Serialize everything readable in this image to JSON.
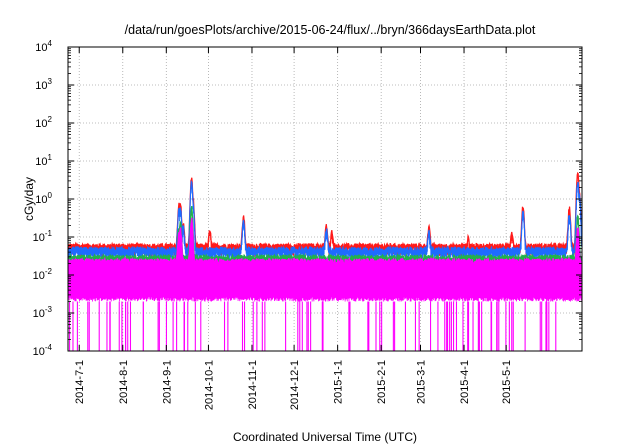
{
  "chart_data": {
    "type": "line",
    "title": "/data/run/goesPlots/archive/2015-06-24/flux/../bryn/366daysEarthData.plot",
    "xlabel": "Coordinated Universal Time (UTC)",
    "ylabel": "cGy/day",
    "yscale": "log",
    "ylim": [
      0.0001,
      10000
    ],
    "xlim": [
      "2014-06-23",
      "2015-06-24"
    ],
    "y_ticks": [
      {
        "value": 0.0001,
        "base": "10",
        "exp": "-4"
      },
      {
        "value": 0.001,
        "base": "10",
        "exp": "-3"
      },
      {
        "value": 0.01,
        "base": "10",
        "exp": "-2"
      },
      {
        "value": 0.1,
        "base": "10",
        "exp": "-1"
      },
      {
        "value": 1,
        "base": "10",
        "exp": "0"
      },
      {
        "value": 10,
        "base": "10",
        "exp": "1"
      },
      {
        "value": 100,
        "base": "10",
        "exp": "2"
      },
      {
        "value": 1000,
        "base": "10",
        "exp": "3"
      },
      {
        "value": 10000,
        "base": "10",
        "exp": "4"
      }
    ],
    "x_ticks": [
      "2014-7-1",
      "2014-8-1",
      "2014-9-1",
      "2014-10-1",
      "2014-11-1",
      "2014-12-1",
      "2015-1-1",
      "2015-2-1",
      "2015-3-1",
      "2015-4-1",
      "2015-5-1"
    ],
    "grid": true,
    "legend": "none",
    "series": [
      {
        "color": "#ff1a1a",
        "baseline": 0.05,
        "points": [
          [
            "2014-09-10",
            0.6
          ],
          [
            "2014-09-11",
            0.65
          ],
          [
            "2014-09-13",
            0.2
          ],
          [
            "2014-09-19",
            3.0
          ],
          [
            "2014-09-20",
            0.9
          ],
          [
            "2014-10-02",
            0.12
          ],
          [
            "2014-10-26",
            0.3
          ],
          [
            "2014-12-24",
            0.17
          ],
          [
            "2014-12-28",
            0.12
          ],
          [
            "2015-03-07",
            0.15
          ],
          [
            "2015-04-04",
            0.08
          ],
          [
            "2015-05-05",
            0.12
          ],
          [
            "2015-05-13",
            0.55
          ],
          [
            "2015-06-15",
            0.5
          ],
          [
            "2015-06-21",
            4.5
          ],
          [
            "2015-06-22",
            1.5
          ]
        ]
      },
      {
        "color": "#1e6bff",
        "baseline": 0.04,
        "points": [
          [
            "2014-09-10",
            0.45
          ],
          [
            "2014-09-11",
            0.5
          ],
          [
            "2014-09-13",
            0.15
          ],
          [
            "2014-09-19",
            2.2
          ],
          [
            "2014-09-20",
            0.6
          ],
          [
            "2014-10-26",
            0.22
          ],
          [
            "2014-12-24",
            0.13
          ],
          [
            "2015-03-07",
            0.12
          ],
          [
            "2015-05-13",
            0.4
          ],
          [
            "2015-06-15",
            0.35
          ],
          [
            "2015-06-21",
            2.5
          ],
          [
            "2015-06-22",
            1.2
          ]
        ]
      },
      {
        "color": "#22b14c",
        "baseline": 0.025,
        "points": [
          [
            "2014-09-10",
            0.15
          ],
          [
            "2014-09-11",
            0.2
          ],
          [
            "2014-09-19",
            0.5
          ],
          [
            "2015-06-21",
            0.3
          ]
        ]
      },
      {
        "color": "#ff00ff",
        "baseline": 0.02,
        "floor": 0.002,
        "points": [
          [
            "2014-09-10",
            0.1
          ],
          [
            "2014-09-11",
            0.15
          ],
          [
            "2014-09-19",
            0.25
          ],
          [
            "2015-06-21",
            0.15
          ]
        ]
      }
    ]
  }
}
